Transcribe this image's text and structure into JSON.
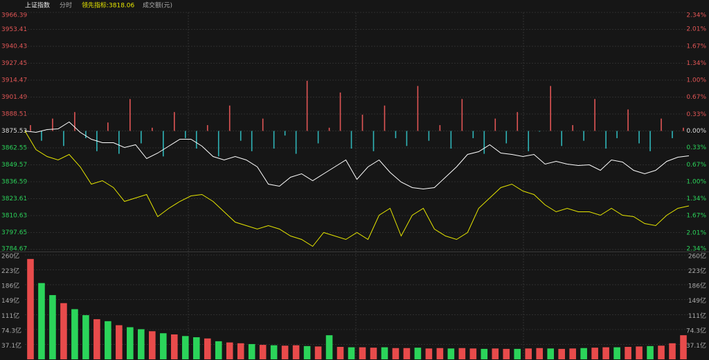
{
  "header": {
    "title": "上证指数",
    "mode": "分时",
    "indicator": "领先指标:3818.06",
    "volume_label": "成交额(元)"
  },
  "chart_data": [
    {
      "type": "line",
      "ylim": [
        3784.67,
        3966.39
      ],
      "base": 3875.53,
      "yticks": [
        3966.39,
        3953.41,
        3940.43,
        3927.45,
        3914.47,
        3901.49,
        3888.51,
        3875.53,
        3862.55,
        3849.57,
        3836.59,
        3823.61,
        3810.63,
        3797.65,
        3784.67
      ],
      "y2lim": [
        -2.34,
        2.34
      ],
      "y2ticks": [
        {
          "value": 2.34,
          "label": "2.34%"
        },
        {
          "value": 2.01,
          "label": "2.01%"
        },
        {
          "value": 1.67,
          "label": "1.67%"
        },
        {
          "value": 1.34,
          "label": "1.34%"
        },
        {
          "value": 1.0,
          "label": "1.00%"
        },
        {
          "value": 0.67,
          "label": "0.67%"
        },
        {
          "value": 0.33,
          "label": "0.33%"
        },
        {
          "value": 0,
          "label": "0.00%"
        },
        {
          "value": -0.33,
          "label": "0.33%"
        },
        {
          "value": -0.67,
          "label": "0.67%"
        },
        {
          "value": -1.0,
          "label": "1.00%"
        },
        {
          "value": -1.34,
          "label": "1.34%"
        },
        {
          "value": -1.67,
          "label": "1.67%"
        },
        {
          "value": -2.01,
          "label": "2.01%"
        },
        {
          "value": -2.34,
          "label": "2.34%"
        }
      ],
      "up_color": "#e05555",
      "down_color": "#2fb5b8",
      "flat_color": "#dddddd",
      "grid": true,
      "series": [
        {
          "color": "#ffffff",
          "values": [
            3875.53,
            3874.47,
            3876.59,
            3877.12,
            3882.42,
            3874.47,
            3869.17,
            3866.52,
            3866.52,
            3862.82,
            3864.93,
            3854.34,
            3858.58,
            3863.87,
            3869.17,
            3869.17,
            3863.87,
            3855.93,
            3853.28,
            3855.93,
            3853.28,
            3847.98,
            3834.74,
            3833.15,
            3840.03,
            3842.68,
            3837.38,
            3842.68,
            3847.98,
            3853.28,
            3838.44,
            3847.98,
            3853.28,
            3843.74,
            3836.33,
            3832.09,
            3831.03,
            3832.09,
            3840.03,
            3847.98,
            3857.52,
            3859.64,
            3864.93,
            3858.58,
            3857.52,
            3855.93,
            3857.52,
            3850.1,
            3852.22,
            3850.1,
            3849.04,
            3849.57,
            3845.33,
            3853.28,
            3851.69,
            3845.33,
            3842.68,
            3845.33,
            3852.22,
            3855.4,
            3856.46
          ]
        },
        {
          "color": "#e6e600",
          "values": [
            3875.53,
            3861.23,
            3855.93,
            3853.28,
            3857.52,
            3847.98,
            3834.74,
            3837.38,
            3832.09,
            3821.49,
            3824.14,
            3826.79,
            3809.83,
            3816.19,
            3821.49,
            3825.73,
            3826.79,
            3821.49,
            3813.54,
            3805.6,
            3802.95,
            3800.3,
            3802.95,
            3800.3,
            3795.0,
            3792.35,
            3787.05,
            3797.65,
            3795.0,
            3792.35,
            3797.65,
            3792.35,
            3810.89,
            3816.19,
            3795.0,
            3810.89,
            3816.19,
            3800.3,
            3795.0,
            3792.35,
            3797.65,
            3816.19,
            3824.14,
            3832.09,
            3834.74,
            3829.44,
            3826.79,
            3818.84,
            3813.54,
            3816.19,
            3813.54,
            3813.54,
            3810.89,
            3816.19,
            3810.89,
            3809.83,
            3804.54,
            3802.95,
            3810.89,
            3816.19,
            3818.06
          ]
        }
      ],
      "bars": [
        3880,
        3868,
        3885,
        3864,
        3890,
        3870,
        3860,
        3882,
        3858,
        3900,
        3866,
        3878,
        3856,
        3890,
        3870,
        3862,
        3880,
        3856,
        3895,
        3868,
        3860,
        3885,
        3862,
        3872,
        3858,
        3914,
        3866,
        3878,
        3905,
        3862,
        3888,
        3860,
        3895,
        3870,
        3864,
        3910,
        3868,
        3880,
        3862,
        3900,
        3870,
        3858,
        3885,
        3866,
        3890,
        3860,
        3875,
        3910,
        3864,
        3880,
        3868,
        3900,
        3862,
        3870,
        3892,
        3866,
        3860,
        3885,
        3870,
        3878
      ]
    },
    {
      "type": "bar",
      "ylim": [
        0,
        260
      ],
      "yticks": [
        {
          "value": 260,
          "label": "260亿"
        },
        {
          "value": 223,
          "label": "223亿"
        },
        {
          "value": 186,
          "label": "186亿"
        },
        {
          "value": 149,
          "label": "149亿"
        },
        {
          "value": 111,
          "label": "111亿"
        },
        {
          "value": 74.3,
          "label": "74.3亿"
        },
        {
          "value": 37.1,
          "label": "37.1亿"
        }
      ],
      "grid": true,
      "series": [
        {
          "color": "#e84b4b",
          "values": [
            250,
            null,
            null,
            140,
            null,
            null,
            100,
            null,
            85,
            null,
            null,
            70,
            null,
            62,
            null,
            null,
            52,
            null,
            42,
            40,
            null,
            36,
            null,
            34,
            35,
            null,
            32,
            null,
            31,
            null,
            30,
            29,
            null,
            28,
            28,
            null,
            27,
            28,
            null,
            28,
            27,
            null,
            27,
            26,
            null,
            27,
            28,
            null,
            26,
            27,
            null,
            29,
            30,
            null,
            31,
            32,
            null,
            34,
            40,
            60
          ]
        },
        {
          "color": "#2bd45a",
          "values": [
            null,
            190,
            160,
            null,
            125,
            110,
            null,
            95,
            null,
            80,
            75,
            null,
            65,
            null,
            58,
            55,
            null,
            45,
            null,
            null,
            38,
            null,
            35,
            null,
            null,
            33,
            null,
            60,
            null,
            30,
            null,
            null,
            30,
            null,
            null,
            29,
            null,
            null,
            27,
            null,
            null,
            26,
            null,
            null,
            26,
            null,
            null,
            27,
            null,
            null,
            28,
            null,
            null,
            30,
            null,
            null,
            33,
            null,
            null,
            null
          ]
        }
      ]
    }
  ]
}
